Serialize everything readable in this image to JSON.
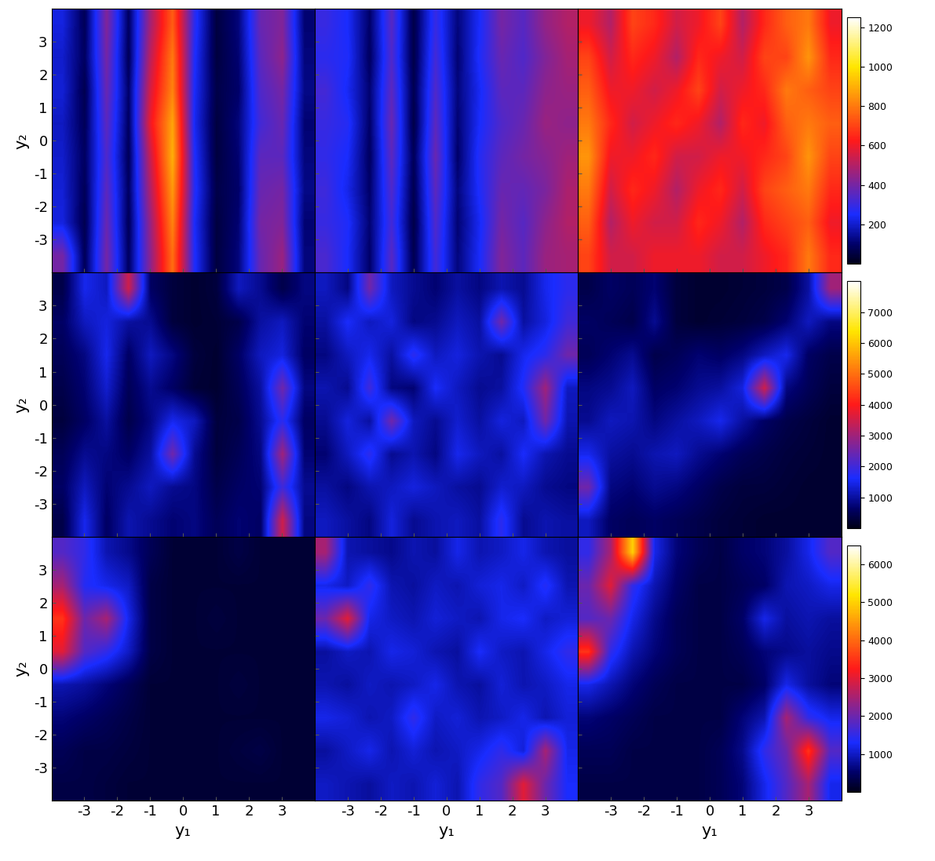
{
  "chart_data": [
    {
      "type": "heatmap",
      "ylabel": "y₂",
      "xlim": [
        -4,
        4
      ],
      "ylim": [
        -4,
        4
      ],
      "xticks": [
        -3,
        -2,
        -1,
        0,
        1,
        2,
        3
      ],
      "yticks": [
        -3,
        -2,
        -1,
        0,
        1,
        2,
        3
      ],
      "tick_labels": "y",
      "colorbar_range": [
        0,
        1250
      ],
      "cells": [
        [
          220,
          80,
          420,
          90,
          480,
          750,
          280,
          50,
          120,
          380,
          420,
          110
        ],
        [
          200,
          90,
          400,
          80,
          520,
          800,
          260,
          50,
          110,
          360,
          440,
          120
        ],
        [
          210,
          70,
          380,
          100,
          560,
          820,
          250,
          60,
          100,
          340,
          400,
          130
        ],
        [
          190,
          80,
          360,
          90,
          600,
          880,
          240,
          50,
          120,
          320,
          380,
          110
        ],
        [
          200,
          90,
          340,
          80,
          540,
          900,
          260,
          50,
          110,
          360,
          360,
          120
        ],
        [
          210,
          80,
          360,
          90,
          500,
          860,
          270,
          60,
          100,
          380,
          400,
          130
        ],
        [
          220,
          70,
          380,
          80,
          460,
          820,
          250,
          50,
          110,
          400,
          420,
          110
        ],
        [
          400,
          80,
          400,
          90,
          440,
          780,
          260,
          50,
          120,
          380,
          460,
          120
        ]
      ]
    },
    {
      "type": "heatmap",
      "xlim": [
        -4,
        4
      ],
      "ylim": [
        -4,
        4
      ],
      "xticks": [
        -3,
        -2,
        -1,
        0,
        1,
        2,
        3
      ],
      "yticks": [
        -3,
        -2,
        -1,
        0,
        1,
        2,
        3
      ],
      "tick_labels": false,
      "colorbar_range": [
        0,
        1250
      ],
      "cells": [
        [
          300,
          250,
          100,
          350,
          60,
          300,
          120,
          250,
          400,
          350,
          450,
          500
        ],
        [
          280,
          260,
          90,
          340,
          60,
          320,
          110,
          260,
          380,
          340,
          420,
          480
        ],
        [
          320,
          240,
          110,
          360,
          70,
          340,
          120,
          240,
          360,
          360,
          440,
          460
        ],
        [
          300,
          270,
          100,
          380,
          60,
          360,
          110,
          250,
          340,
          380,
          460,
          440
        ],
        [
          290,
          250,
          90,
          360,
          80,
          380,
          100,
          270,
          360,
          400,
          430,
          470
        ],
        [
          310,
          230,
          100,
          340,
          70,
          360,
          120,
          260,
          380,
          370,
          410,
          490
        ],
        [
          300,
          260,
          110,
          320,
          60,
          340,
          110,
          240,
          400,
          350,
          440,
          500
        ],
        [
          330,
          250,
          100,
          350,
          70,
          320,
          120,
          250,
          420,
          360,
          460,
          480
        ]
      ]
    },
    {
      "type": "heatmap",
      "xlim": [
        -4,
        4
      ],
      "ylim": [
        -4,
        4
      ],
      "xticks": [
        -3,
        -2,
        -1,
        0,
        1,
        2,
        3
      ],
      "yticks": [
        -3,
        -2,
        -1,
        0,
        1,
        2,
        3
      ],
      "tick_labels": false,
      "colorbar_range": [
        0,
        1250
      ],
      "colorbar_ticks": [
        200,
        400,
        600,
        800,
        1000,
        1200
      ],
      "cells": [
        [
          600,
          500,
          700,
          650,
          550,
          600,
          700,
          500,
          650,
          750,
          800,
          600
        ],
        [
          700,
          550,
          650,
          600,
          500,
          650,
          600,
          550,
          700,
          700,
          850,
          650
        ],
        [
          750,
          600,
          600,
          550,
          600,
          700,
          550,
          600,
          650,
          800,
          750,
          700
        ],
        [
          800,
          650,
          550,
          600,
          650,
          600,
          500,
          650,
          600,
          750,
          800,
          750
        ],
        [
          850,
          600,
          600,
          650,
          550,
          550,
          600,
          600,
          650,
          700,
          850,
          700
        ],
        [
          800,
          550,
          650,
          600,
          500,
          600,
          650,
          550,
          700,
          750,
          800,
          650
        ],
        [
          750,
          500,
          600,
          550,
          550,
          650,
          600,
          500,
          650,
          700,
          750,
          600
        ],
        [
          700,
          550,
          550,
          600,
          600,
          600,
          550,
          550,
          600,
          650,
          800,
          650
        ]
      ]
    },
    {
      "type": "heatmap",
      "ylabel": "y₂",
      "xlim": [
        -4,
        4
      ],
      "ylim": [
        -4,
        4
      ],
      "xticks": [
        -3,
        -2,
        -1,
        0,
        1,
        2,
        3
      ],
      "yticks": [
        -3,
        -2,
        -1,
        0,
        1,
        2,
        3
      ],
      "tick_labels": "y",
      "colorbar_range": [
        0,
        8000
      ],
      "cells": [
        [
          400,
          1500,
          1200,
          3500,
          600,
          300,
          200,
          300,
          1200,
          900,
          400,
          800
        ],
        [
          600,
          1200,
          1400,
          1000,
          900,
          300,
          200,
          250,
          400,
          1000,
          1200,
          700
        ],
        [
          500,
          800,
          1500,
          600,
          1200,
          800,
          300,
          200,
          600,
          1200,
          1400,
          600
        ],
        [
          400,
          700,
          1300,
          500,
          900,
          600,
          250,
          200,
          500,
          1000,
          2500,
          800
        ],
        [
          300,
          600,
          1000,
          400,
          800,
          1500,
          1200,
          300,
          400,
          900,
          1800,
          600
        ],
        [
          500,
          900,
          800,
          600,
          1000,
          2500,
          900,
          300,
          500,
          800,
          3000,
          700
        ],
        [
          600,
          1200,
          700,
          900,
          1200,
          900,
          800,
          400,
          600,
          700,
          2000,
          900
        ],
        [
          400,
          1500,
          600,
          1100,
          900,
          700,
          800,
          500,
          700,
          600,
          3500,
          800
        ]
      ]
    },
    {
      "type": "heatmap",
      "xlim": [
        -4,
        4
      ],
      "ylim": [
        -4,
        4
      ],
      "xticks": [
        -3,
        -2,
        -1,
        0,
        1,
        2,
        3
      ],
      "yticks": [
        -3,
        -2,
        -1,
        0,
        1,
        2,
        3
      ],
      "tick_labels": false,
      "colorbar_range": [
        0,
        8000
      ],
      "cells": [
        [
          1200,
          800,
          2500,
          1200,
          900,
          700,
          1000,
          800,
          1100,
          900,
          1500,
          1800
        ],
        [
          1000,
          1600,
          1200,
          1400,
          800,
          900,
          1200,
          1000,
          2500,
          1000,
          1400,
          2000
        ],
        [
          800,
          1200,
          1500,
          1000,
          1800,
          1200,
          1400,
          1100,
          900,
          1500,
          1800,
          2500
        ],
        [
          1100,
          900,
          2000,
          800,
          700,
          1600,
          1200,
          900,
          1000,
          1700,
          3000,
          1200
        ],
        [
          900,
          1400,
          1000,
          2500,
          1200,
          900,
          1300,
          1000,
          1400,
          1200,
          2500,
          1100
        ],
        [
          700,
          1200,
          1800,
          900,
          1100,
          800,
          1500,
          1200,
          1000,
          1600,
          1100,
          900
        ],
        [
          1000,
          800,
          1100,
          1200,
          1400,
          1200,
          1000,
          900,
          1300,
          1200,
          900,
          800
        ],
        [
          1200,
          1000,
          800,
          1400,
          900,
          1100,
          1200,
          1000,
          1800,
          900,
          1100,
          1000
        ]
      ]
    },
    {
      "type": "heatmap",
      "xlim": [
        -4,
        4
      ],
      "ylim": [
        -4,
        4
      ],
      "xticks": [
        -3,
        -2,
        -1,
        0,
        1,
        2,
        3
      ],
      "yticks": [
        -3,
        -2,
        -1,
        0,
        1,
        2,
        3
      ],
      "tick_labels": false,
      "colorbar_range": [
        0,
        8000
      ],
      "colorbar_ticks": [
        1000,
        2000,
        3000,
        4000,
        5000,
        6000,
        7000
      ],
      "cells": [
        [
          400,
          600,
          500,
          700,
          300,
          200,
          200,
          250,
          300,
          400,
          1000,
          3000
        ],
        [
          600,
          500,
          400,
          900,
          300,
          200,
          250,
          300,
          400,
          700,
          1200,
          800
        ],
        [
          500,
          700,
          900,
          400,
          500,
          700,
          600,
          800,
          1200,
          1500,
          600,
          400
        ],
        [
          800,
          900,
          1200,
          600,
          700,
          900,
          1000,
          1400,
          3500,
          800,
          500,
          300
        ],
        [
          900,
          1200,
          1100,
          800,
          1000,
          1200,
          1500,
          1000,
          600,
          400,
          300,
          200
        ],
        [
          1500,
          1000,
          900,
          1100,
          1200,
          900,
          700,
          500,
          400,
          300,
          250,
          200
        ],
        [
          2500,
          800,
          700,
          900,
          800,
          600,
          400,
          300,
          300,
          250,
          200,
          200
        ],
        [
          1200,
          600,
          500,
          600,
          500,
          400,
          300,
          250,
          200,
          200,
          200,
          200
        ]
      ]
    },
    {
      "type": "heatmap",
      "xlabel": "y₁",
      "ylabel": "y₂",
      "xlim": [
        -4,
        4
      ],
      "ylim": [
        -4,
        4
      ],
      "xticks": [
        -3,
        -2,
        -1,
        0,
        1,
        2,
        3
      ],
      "yticks": [
        -3,
        -2,
        -1,
        0,
        1,
        2,
        3
      ],
      "tick_labels": true,
      "colorbar_range": [
        0,
        6500
      ],
      "cells": [
        [
          1800,
          1500,
          900,
          700,
          400,
          200,
          200,
          200,
          300,
          200,
          200,
          200
        ],
        [
          2500,
          1400,
          1200,
          1000,
          300,
          200,
          200,
          200,
          200,
          200,
          200,
          200
        ],
        [
          3500,
          2000,
          2500,
          1200,
          300,
          200,
          200,
          250,
          200,
          200,
          200,
          200
        ],
        [
          3000,
          1800,
          1500,
          1000,
          300,
          200,
          200,
          200,
          200,
          200,
          200,
          200
        ],
        [
          900,
          800,
          600,
          400,
          200,
          200,
          200,
          200,
          250,
          200,
          200,
          200
        ],
        [
          600,
          500,
          400,
          300,
          200,
          200,
          200,
          200,
          200,
          200,
          200,
          200
        ],
        [
          400,
          300,
          300,
          250,
          200,
          200,
          200,
          200,
          250,
          300,
          200,
          200
        ],
        [
          300,
          300,
          250,
          200,
          200,
          200,
          200,
          200,
          200,
          200,
          200,
          200
        ]
      ]
    },
    {
      "type": "heatmap",
      "xlabel": "y₁",
      "xlim": [
        -4,
        4
      ],
      "ylim": [
        -4,
        4
      ],
      "xticks": [
        -3,
        -2,
        -1,
        0,
        1,
        2,
        3
      ],
      "yticks": [
        -3,
        -2,
        -1,
        0,
        1,
        2,
        3
      ],
      "tick_labels": "x",
      "colorbar_range": [
        0,
        6500
      ],
      "cells": [
        [
          2500,
          900,
          800,
          700,
          900,
          800,
          1200,
          900,
          1000,
          1200,
          900,
          800
        ],
        [
          1200,
          1000,
          1500,
          900,
          800,
          1000,
          900,
          1100,
          1200,
          1000,
          1400,
          900
        ],
        [
          2000,
          3000,
          1200,
          1000,
          900,
          1100,
          1000,
          900,
          1200,
          1300,
          1000,
          1100
        ],
        [
          800,
          1000,
          900,
          1200,
          1100,
          900,
          800,
          1300,
          1000,
          900,
          1200,
          1500
        ],
        [
          900,
          800,
          1000,
          900,
          1000,
          1200,
          900,
          800,
          1100,
          900,
          1000,
          1200
        ],
        [
          1200,
          1100,
          900,
          1000,
          1500,
          1000,
          1100,
          900,
          1000,
          1200,
          900,
          1100
        ],
        [
          800,
          1000,
          1200,
          900,
          1100,
          900,
          1000,
          1200,
          1500,
          1100,
          2500,
          1200
        ],
        [
          1000,
          900,
          800,
          1000,
          900,
          1100,
          900,
          1500,
          1800,
          3000,
          2000,
          1300
        ]
      ]
    },
    {
      "type": "heatmap",
      "xlabel": "y₁",
      "xlim": [
        -4,
        4
      ],
      "ylim": [
        -4,
        4
      ],
      "xticks": [
        -3,
        -2,
        -1,
        0,
        1,
        2,
        3
      ],
      "yticks": [
        -3,
        -2,
        -1,
        0,
        1,
        2,
        3
      ],
      "tick_labels": "x",
      "colorbar_range": [
        0,
        6500
      ],
      "colorbar_ticks": [
        1000,
        2000,
        3000,
        4000,
        5000,
        6000
      ],
      "cells": [
        [
          1500,
          2500,
          5000,
          1200,
          600,
          400,
          300,
          500,
          600,
          800,
          1200,
          1800
        ],
        [
          2000,
          3000,
          1500,
          900,
          500,
          300,
          300,
          400,
          500,
          900,
          1000,
          1200
        ],
        [
          1800,
          2000,
          1200,
          700,
          400,
          300,
          300,
          500,
          1200,
          800,
          900,
          800
        ],
        [
          3500,
          1500,
          900,
          600,
          400,
          300,
          300,
          400,
          600,
          700,
          800,
          700
        ],
        [
          1200,
          900,
          600,
          400,
          300,
          300,
          300,
          300,
          500,
          1200,
          800,
          600
        ],
        [
          600,
          500,
          400,
          300,
          300,
          300,
          300,
          600,
          900,
          2500,
          1500,
          1200
        ],
        [
          400,
          400,
          300,
          300,
          300,
          300,
          400,
          700,
          1500,
          2000,
          3500,
          1800
        ],
        [
          300,
          300,
          300,
          300,
          300,
          300,
          400,
          600,
          1200,
          1800,
          2500,
          1200
        ]
      ]
    }
  ]
}
